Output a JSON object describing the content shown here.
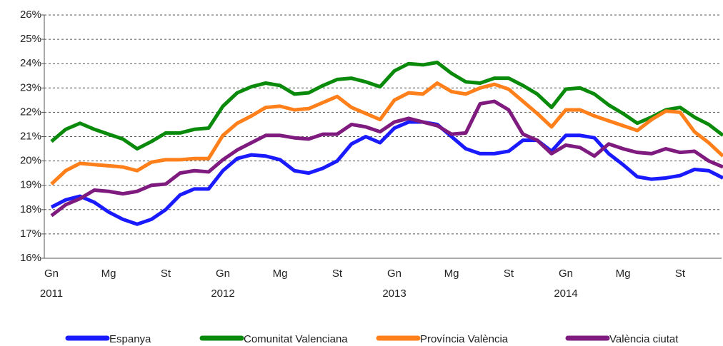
{
  "chart_data": {
    "type": "line",
    "categories": [
      "Gn",
      null,
      null,
      null,
      "Mg",
      null,
      null,
      null,
      "St",
      null,
      null,
      null,
      "Gn",
      null,
      null,
      null,
      "Mg",
      null,
      null,
      null,
      "St",
      null,
      null,
      null,
      "Gn",
      null,
      null,
      null,
      "Mg",
      null,
      null,
      null,
      "St",
      null,
      null,
      null,
      "Gn",
      null,
      null,
      null,
      "Mg",
      null,
      null,
      null,
      "St",
      null,
      null,
      null
    ],
    "category_groups": [
      "2011",
      "2012",
      "2013",
      "2014"
    ],
    "series": [
      {
        "name": "Espanya",
        "color": "#1a1aff",
        "values": [
          18.1,
          18.4,
          18.55,
          18.3,
          17.9,
          17.6,
          17.4,
          17.6,
          18.0,
          18.6,
          18.85,
          18.85,
          19.6,
          20.1,
          20.25,
          20.2,
          20.05,
          19.6,
          19.5,
          19.7,
          20.0,
          20.7,
          21.0,
          20.75,
          21.35,
          21.6,
          21.6,
          21.5,
          21.0,
          20.5,
          20.3,
          20.3,
          20.4,
          20.85,
          20.85,
          20.4,
          21.05,
          21.05,
          20.95,
          20.3,
          19.85,
          19.35,
          19.25,
          19.3,
          19.4,
          19.65,
          19.6,
          19.3
        ]
      },
      {
        "name": "Comunitat Valenciana",
        "color": "#0a8a0a",
        "values": [
          20.8,
          21.3,
          21.55,
          21.3,
          21.1,
          20.9,
          20.5,
          20.8,
          21.15,
          21.15,
          21.3,
          21.35,
          22.25,
          22.8,
          23.05,
          23.2,
          23.1,
          22.75,
          22.8,
          23.1,
          23.35,
          23.4,
          23.25,
          23.05,
          23.7,
          24.0,
          23.95,
          24.05,
          23.6,
          23.25,
          23.2,
          23.4,
          23.4,
          23.1,
          22.75,
          22.2,
          22.95,
          23.0,
          22.75,
          22.3,
          21.95,
          21.55,
          21.8,
          22.1,
          22.2,
          21.8,
          21.5,
          21.05
        ]
      },
      {
        "name": "Província València",
        "color": "#ff7f1a",
        "values": [
          19.05,
          19.6,
          19.9,
          19.85,
          19.8,
          19.75,
          19.6,
          19.95,
          20.05,
          20.05,
          20.1,
          20.1,
          21.05,
          21.55,
          21.85,
          22.2,
          22.25,
          22.1,
          22.15,
          22.4,
          22.65,
          22.2,
          21.95,
          21.7,
          22.5,
          22.8,
          22.75,
          23.2,
          22.85,
          22.75,
          23.0,
          23.15,
          22.95,
          22.45,
          21.95,
          21.4,
          22.1,
          22.1,
          21.85,
          21.65,
          21.45,
          21.25,
          21.7,
          22.05,
          22.0,
          21.2,
          20.75,
          20.2
        ]
      },
      {
        "name": "València ciutat",
        "color": "#7f1a7f",
        "values": [
          17.75,
          18.2,
          18.45,
          18.8,
          18.75,
          18.65,
          18.75,
          19.0,
          19.05,
          19.5,
          19.6,
          19.55,
          20.05,
          20.45,
          20.75,
          21.05,
          21.05,
          20.95,
          20.9,
          21.1,
          21.1,
          21.5,
          21.4,
          21.2,
          21.6,
          21.75,
          21.6,
          21.45,
          21.1,
          21.15,
          22.35,
          22.45,
          22.1,
          21.1,
          20.85,
          20.3,
          20.65,
          20.55,
          20.2,
          20.7,
          20.5,
          20.35,
          20.3,
          20.5,
          20.35,
          20.4,
          20.0,
          19.75
        ]
      }
    ],
    "ylim": [
      16,
      26
    ],
    "yticks": [
      {
        "value": 16,
        "label": "16%"
      },
      {
        "value": 17,
        "label": "17%"
      },
      {
        "value": 18,
        "label": "18%"
      },
      {
        "value": 19,
        "label": "19%"
      },
      {
        "value": 20,
        "label": "20%"
      },
      {
        "value": 21,
        "label": "21%"
      },
      {
        "value": 22,
        "label": "22%"
      },
      {
        "value": 23,
        "label": "23%"
      },
      {
        "value": 24,
        "label": "24%"
      },
      {
        "value": 25,
        "label": "25%"
      },
      {
        "value": 26,
        "label": "26%"
      }
    ],
    "grid": true,
    "legend": "bottom"
  }
}
